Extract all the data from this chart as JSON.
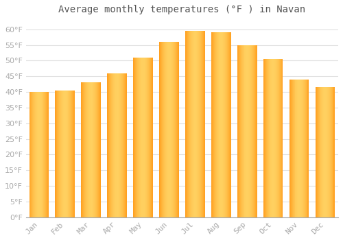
{
  "title": "Average monthly temperatures (°F ) in Navan",
  "months": [
    "Jan",
    "Feb",
    "Mar",
    "Apr",
    "May",
    "Jun",
    "Jul",
    "Aug",
    "Sep",
    "Oct",
    "Nov",
    "Dec"
  ],
  "values": [
    40,
    40.5,
    43,
    46,
    51,
    56,
    59.5,
    59,
    55,
    50.5,
    44,
    41.5
  ],
  "bar_color_light": "#FFD060",
  "bar_color_dark": "#FFA020",
  "background_color": "#FFFFFF",
  "grid_color": "#E0E0E0",
  "ylim": [
    0,
    63
  ],
  "yticks": [
    0,
    5,
    10,
    15,
    20,
    25,
    30,
    35,
    40,
    45,
    50,
    55,
    60
  ],
  "title_fontsize": 10,
  "tick_fontsize": 8,
  "tick_color": "#AAAAAA",
  "title_color": "#555555",
  "bar_width": 0.75
}
